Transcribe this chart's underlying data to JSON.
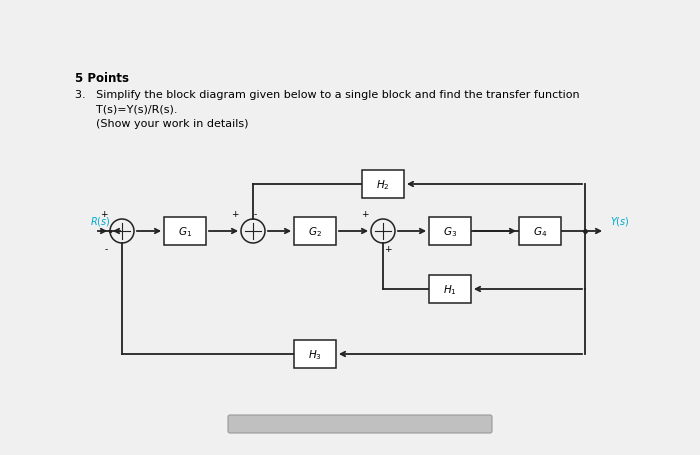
{
  "title_bold": "5 Points",
  "line1": "3.   Simplify the block diagram given below to a single block and find the transfer function",
  "line2": "      T(s)=Y(s)/R(s).",
  "line3": "      (Show your work in details)",
  "bg_color": "#f0f0f0",
  "line_color": "#222222",
  "label_color": "#00aacc",
  "G1_label": "$G_1$",
  "G2_label": "$G_2$",
  "G3_label": "$G_3$",
  "G4_label": "$G_4$",
  "H2_label": "$H_2$",
  "H1_label": "$H_1$",
  "H3_label": "$H_3$",
  "Rs_label": "$R(s)$",
  "Ys_label": "$Y(s)$"
}
